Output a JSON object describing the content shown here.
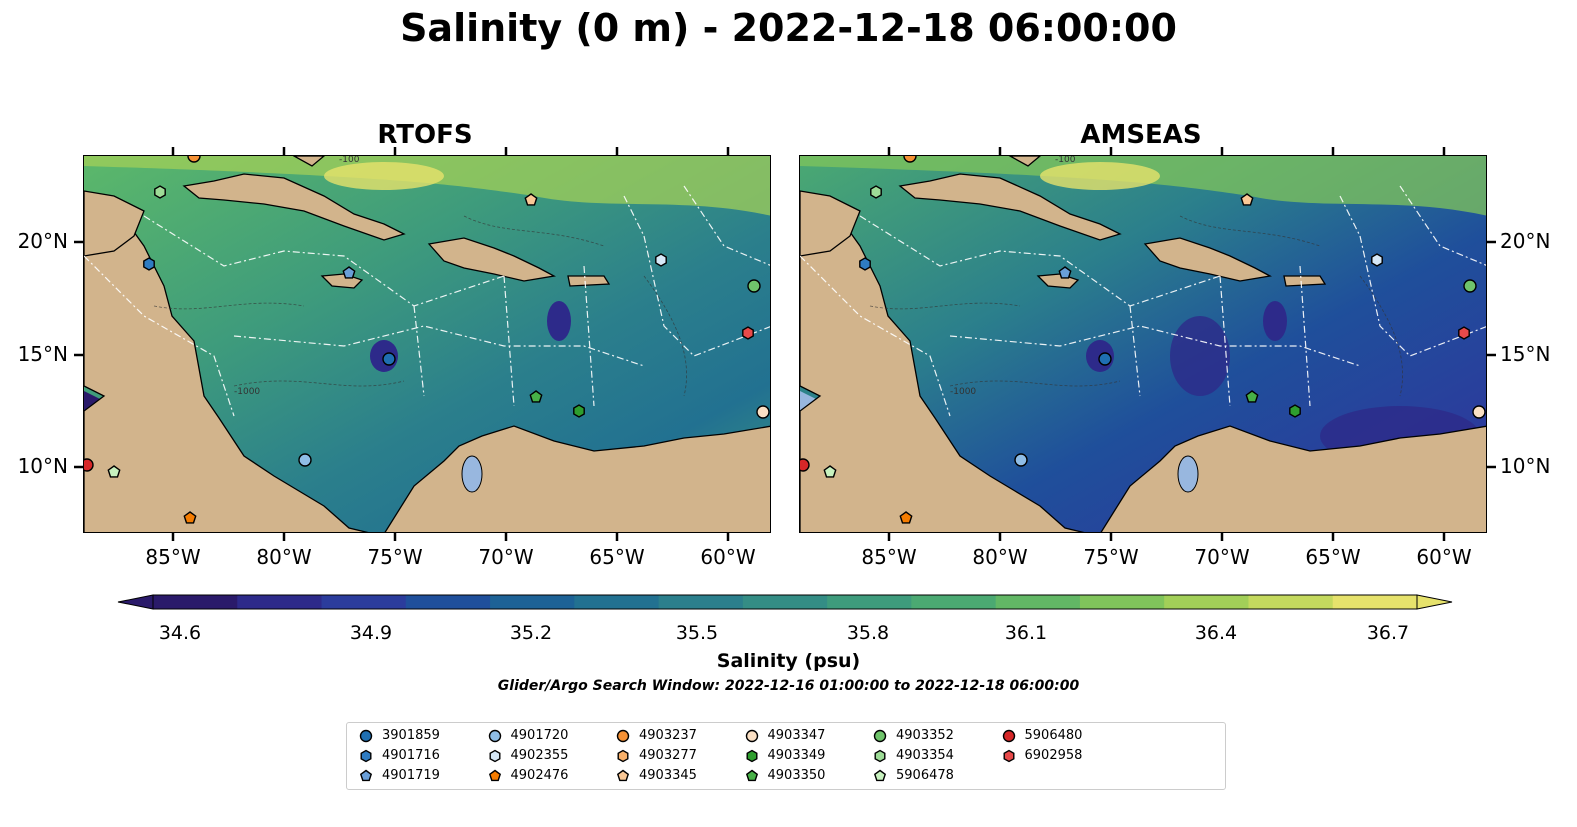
{
  "title": "Salinity (0 m) - 2022-12-18 06:00:00",
  "panels": [
    {
      "title": "RTOFS",
      "field": "rtofs"
    },
    {
      "title": "AMSEAS",
      "field": "amseas"
    }
  ],
  "lon_ticks": [
    "85°W",
    "80°W",
    "75°W",
    "70°W",
    "65°W",
    "60°W"
  ],
  "lat_ticks": [
    "20°N",
    "15°N",
    "10°N"
  ],
  "colorbar": {
    "label": "Salinity (psu)",
    "ticks": [
      "34.6",
      "34.9",
      "35.2",
      "35.5",
      "35.8",
      "36.1",
      "36.4",
      "36.7"
    ],
    "colors": [
      "#2a1a6a",
      "#2d2a8a",
      "#2b3c9c",
      "#1f4f9b",
      "#1d6296",
      "#227191",
      "#2b7f8c",
      "#348d85",
      "#3e9b7c",
      "#4ba972",
      "#62b765",
      "#80c45b",
      "#a2cf58",
      "#c4d95e",
      "#e6e26c"
    ]
  },
  "search_window": "Glider/Argo Search Window: 2022-12-16 01:00:00 to 2022-12-18 06:00:00",
  "legend": [
    {
      "id": "3901859",
      "color": "#1f6fb2",
      "shape": "circle"
    },
    {
      "id": "4901716",
      "color": "#2f7cc2",
      "shape": "hexagon"
    },
    {
      "id": "4901719",
      "color": "#6a9fd8",
      "shape": "pentagon"
    },
    {
      "id": "4901720",
      "color": "#8fbde6",
      "shape": "circle"
    },
    {
      "id": "4902355",
      "color": "#d6e8f7",
      "shape": "hexagon"
    },
    {
      "id": "4902476",
      "color": "#f57c00",
      "shape": "pentagon"
    },
    {
      "id": "4903237",
      "color": "#f59135",
      "shape": "circle"
    },
    {
      "id": "4903277",
      "color": "#f8b06a",
      "shape": "hexagon"
    },
    {
      "id": "4903345",
      "color": "#fac896",
      "shape": "pentagon"
    },
    {
      "id": "4903347",
      "color": "#fbe0c4",
      "shape": "circle"
    },
    {
      "id": "4903349",
      "color": "#2e9e2e",
      "shape": "hexagon"
    },
    {
      "id": "4903350",
      "color": "#47b047",
      "shape": "pentagon"
    },
    {
      "id": "4903352",
      "color": "#6fc46b",
      "shape": "circle"
    },
    {
      "id": "4903354",
      "color": "#9edc97",
      "shape": "hexagon"
    },
    {
      "id": "5906478",
      "color": "#c8f2bf",
      "shape": "pentagon"
    },
    {
      "id": "5906480",
      "color": "#d62728",
      "shape": "circle"
    },
    {
      "id": "6902958",
      "color": "#e84a4a",
      "shape": "hexagon"
    }
  ],
  "map_labels": {
    "contour_label": "-1000",
    "contour_label_2": "-100"
  }
}
